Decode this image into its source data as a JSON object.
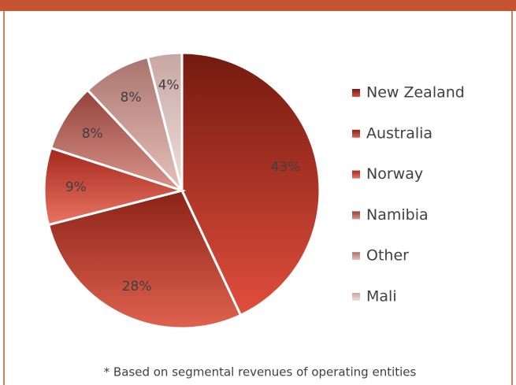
{
  "chart_data": {
    "type": "pie",
    "categories": [
      "New Zealand",
      "Australia",
      "Norway",
      "Namibia",
      "Other",
      "Mali"
    ],
    "values": [
      43,
      28,
      9,
      8,
      8,
      4
    ],
    "value_labels": [
      "43%",
      "28%",
      "9%",
      "8%",
      "8%",
      "4%"
    ],
    "colors": [
      [
        "#741a10",
        "#e14e3c"
      ],
      [
        "#8a2217",
        "#e0624f"
      ],
      [
        "#a3281c",
        "#ea7463"
      ],
      [
        "#94423b",
        "#d9968d"
      ],
      [
        "#aa736c",
        "#e6c2bc"
      ],
      [
        "#c7a6a2",
        "#f0dfdc"
      ]
    ],
    "legend": "right",
    "footnote": "* Based on segmental revenues of operating entities"
  }
}
